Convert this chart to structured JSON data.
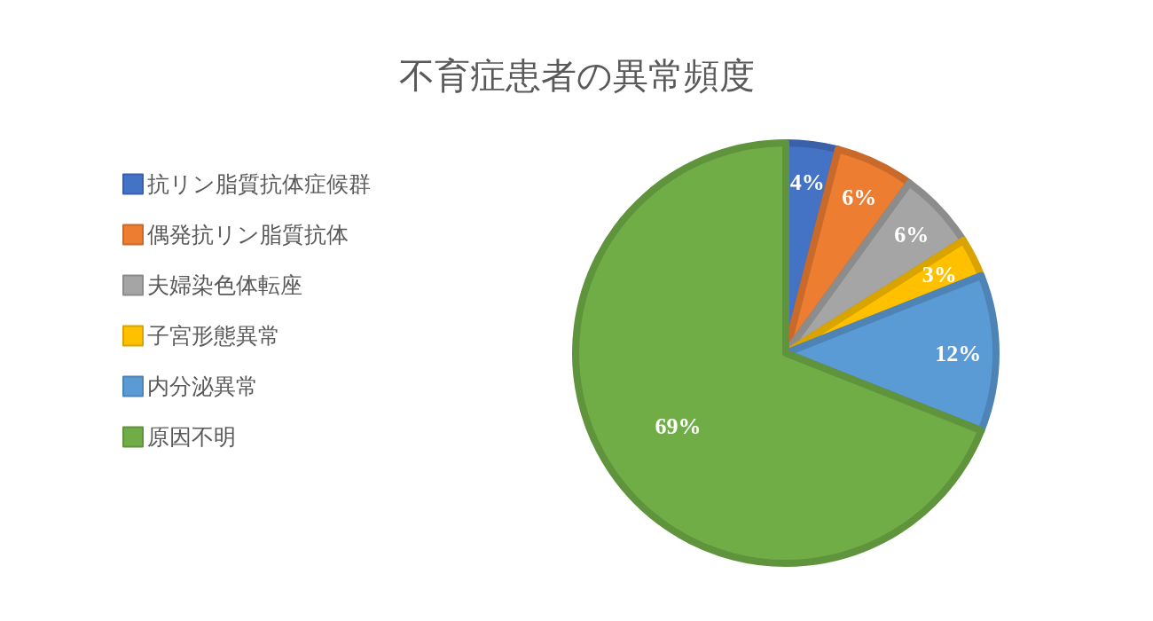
{
  "chart_data": {
    "type": "pie",
    "title": "不育症患者の異常頻度",
    "categories": [
      "抗リン脂質抗体症候群",
      "偶発抗リン脂質抗体",
      "夫婦染色体転座",
      "子宮形態異常",
      "内分泌異常",
      "原因不明"
    ],
    "values": [
      4,
      6,
      6,
      3,
      12,
      69
    ],
    "colors": [
      "#4472c4",
      "#ed7d31",
      "#a5a5a5",
      "#ffc000",
      "#5b9bd5",
      "#70ad47"
    ],
    "value_labels": [
      "4%",
      "6%",
      "6%",
      "3%",
      "12%",
      "69%"
    ],
    "legend": "left"
  }
}
